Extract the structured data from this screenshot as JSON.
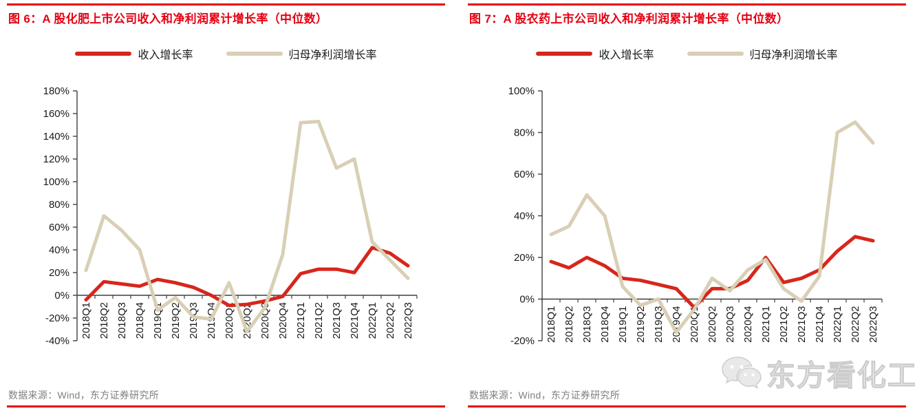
{
  "accent_red": "#e60012",
  "source_note": "数据来源：Wind，东方证券研究所",
  "watermark": {
    "icon": "wechat-logo-icon",
    "text": "东方看化工"
  },
  "chart_data": [
    {
      "type": "line",
      "title": "图 6：A 股化肥上市公司收入和净利润累计增长率（中位数）",
      "unit": "%",
      "legend_position": "top",
      "grid": false,
      "ylim": [
        -40,
        180
      ],
      "ytick_step": 20,
      "categories": [
        "2018Q1",
        "2018Q2",
        "2018Q3",
        "2018Q4",
        "2019Q1",
        "2019Q2",
        "2019Q3",
        "2019Q4",
        "2020Q1",
        "2020Q2",
        "2020Q3",
        "2020Q4",
        "2021Q1",
        "2021Q2",
        "2021Q3",
        "2021Q4",
        "2022Q1",
        "2022Q2",
        "2022Q3"
      ],
      "series": [
        {
          "name": "收入增长率",
          "color": "#d7261c",
          "values": [
            -4,
            12,
            10,
            8,
            14,
            11,
            7,
            0,
            -9,
            -8,
            -5,
            -1,
            19,
            23,
            23,
            20,
            42,
            37,
            26
          ]
        },
        {
          "name": "归母净利润增长率",
          "color": "#d8cfb5",
          "values": [
            22,
            70,
            57,
            40,
            -13,
            -2,
            -19,
            -21,
            11,
            -32,
            -11,
            36,
            152,
            153,
            112,
            120,
            47,
            31,
            15
          ]
        }
      ]
    },
    {
      "type": "line",
      "title": "图 7：A 股农药上市公司收入和净利润累计增长率（中位数）",
      "unit": "%",
      "legend_position": "top",
      "grid": false,
      "ylim": [
        -20,
        100
      ],
      "ytick_step": 20,
      "categories": [
        "2018Q1",
        "2018Q2",
        "2018Q3",
        "2018Q4",
        "2019Q1",
        "2019Q2",
        "2019Q3",
        "2019Q4",
        "2020Q1",
        "2020Q2",
        "2020Q3",
        "2020Q4",
        "2021Q1",
        "2021Q2",
        "2021Q3",
        "2021Q4",
        "2022Q1",
        "2022Q2",
        "2022Q3"
      ],
      "series": [
        {
          "name": "收入增长率",
          "color": "#d7261c",
          "values": [
            18,
            15,
            20,
            16,
            10,
            9,
            7,
            5,
            -4,
            5,
            5,
            9,
            20,
            8,
            10,
            14,
            23,
            30,
            28
          ]
        },
        {
          "name": "归母净利润增长率",
          "color": "#d8cfb5",
          "values": [
            31,
            35,
            50,
            40,
            6,
            -3,
            0,
            -16,
            -5,
            10,
            4,
            14,
            19,
            5,
            -1,
            11,
            80,
            85,
            75
          ]
        }
      ]
    }
  ]
}
